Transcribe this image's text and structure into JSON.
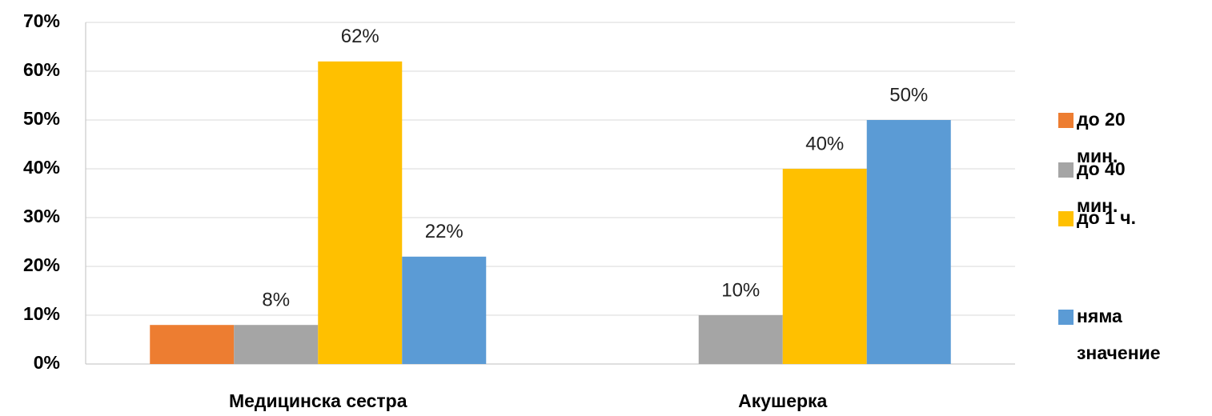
{
  "chart_data": {
    "type": "bar",
    "categories": [
      "Медицинска сестра",
      "Акушерка"
    ],
    "series": [
      {
        "name": "до 20 мин.",
        "color": "#ED7D31",
        "values": [
          8,
          0
        ]
      },
      {
        "name": "до 40 мин.",
        "color": "#A5A5A5",
        "values": [
          8,
          10
        ],
        "value_labels": [
          "8%",
          "10%"
        ]
      },
      {
        "name": "до 1 ч.",
        "color": "#FFC000",
        "values": [
          62,
          40
        ],
        "value_labels": [
          "62%",
          "40%"
        ]
      },
      {
        "name": "няма значение",
        "color": "#5B9BD5",
        "values": [
          22,
          50
        ],
        "value_labels": [
          "22%",
          "50%"
        ]
      }
    ],
    "ylim": [
      0,
      70
    ],
    "yticks": [
      {
        "value": 0,
        "label": "0%"
      },
      {
        "value": 10,
        "label": "10%"
      },
      {
        "value": 20,
        "label": "20%"
      },
      {
        "value": 30,
        "label": "30%"
      },
      {
        "value": 40,
        "label": "40%"
      },
      {
        "value": 50,
        "label": "50%"
      },
      {
        "value": 60,
        "label": "60%"
      },
      {
        "value": 70,
        "label": "70%"
      }
    ],
    "grid": true,
    "legend": "right"
  }
}
